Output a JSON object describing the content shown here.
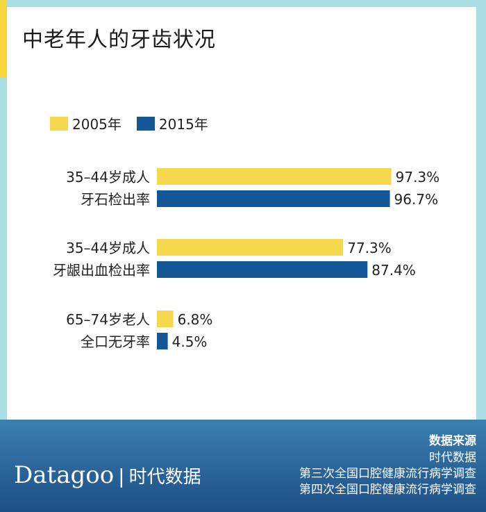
{
  "title": "中老年人的牙齿状况",
  "legend": [
    {
      "label": "2005年",
      "color": "#f5d84e"
    },
    {
      "label": "2015年",
      "color": "#135796"
    }
  ],
  "chart_data": {
    "type": "bar",
    "orientation": "horizontal",
    "title": "中老年人的牙齿状况",
    "categories": [
      [
        "35–44岁成人",
        "牙石检出率"
      ],
      [
        "35–44岁成人",
        "牙龈出血检出率"
      ],
      [
        "65–74岁老人",
        "全口无牙率"
      ]
    ],
    "series": [
      {
        "name": "2005年",
        "values": [
          97.3,
          77.3,
          6.8
        ],
        "labels": [
          "97.3%",
          "77.3%",
          "6.8%"
        ],
        "color": "#f5d84e"
      },
      {
        "name": "2015年",
        "values": [
          96.7,
          87.4,
          4.5
        ],
        "labels": [
          "96.7%",
          "87.4%",
          "4.5%"
        ],
        "color": "#135796"
      }
    ],
    "xlim": [
      0,
      100
    ],
    "grid": false,
    "legend": "top-left"
  },
  "footer": {
    "brand_en": "Datagoo",
    "brand_sep": "|",
    "brand_cn": "时代数据",
    "sources_heading": "数据来源",
    "sources": [
      "时代数据",
      "第三次全国口腔健康流行病学调查",
      "第四次全国口腔健康流行病学调查"
    ]
  }
}
